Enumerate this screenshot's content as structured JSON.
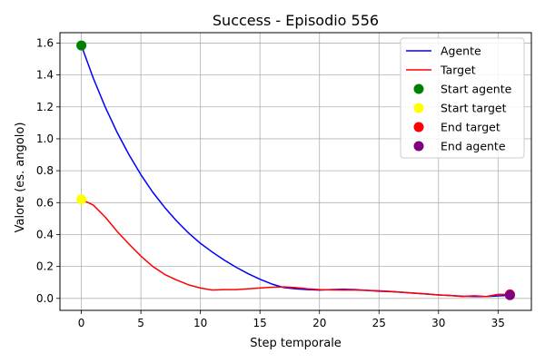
{
  "chart_data": {
    "type": "line",
    "title": "Success - Episodio 556",
    "xlabel": "Step temporale",
    "ylabel": "Valore (es. angolo)",
    "xlim": [
      -1.8,
      37.8
    ],
    "ylim": [
      -0.075,
      1.665
    ],
    "xticks": [
      0,
      5,
      10,
      15,
      20,
      25,
      30,
      35
    ],
    "yticks": [
      0.0,
      0.2,
      0.4,
      0.6,
      0.8,
      1.0,
      1.2,
      1.4,
      1.6
    ],
    "grid": true,
    "legend_position": "top-right",
    "series": [
      {
        "name": "Agente",
        "color": "#0000ff",
        "x": [
          0,
          1,
          2,
          3,
          4,
          5,
          6,
          7,
          8,
          9,
          10,
          11,
          12,
          13,
          14,
          15,
          16,
          17,
          18,
          19,
          20,
          21,
          22,
          23,
          24,
          25,
          26,
          27,
          28,
          29,
          30,
          31,
          32,
          33,
          34,
          35,
          36
        ],
        "y": [
          1.585,
          1.38,
          1.2,
          1.04,
          0.9,
          0.775,
          0.665,
          0.57,
          0.485,
          0.41,
          0.345,
          0.29,
          0.24,
          0.195,
          0.155,
          0.12,
          0.09,
          0.068,
          0.06,
          0.055,
          0.052,
          0.055,
          0.057,
          0.055,
          0.05,
          0.045,
          0.042,
          0.038,
          0.032,
          0.027,
          0.022,
          0.018,
          0.014,
          0.012,
          0.012,
          0.015,
          0.02
        ]
      },
      {
        "name": "Target",
        "color": "#ff0000",
        "x": [
          0,
          1,
          2,
          3,
          4,
          5,
          6,
          7,
          8,
          9,
          10,
          11,
          12,
          13,
          14,
          15,
          16,
          17,
          18,
          19,
          20,
          21,
          22,
          23,
          24,
          25,
          26,
          27,
          28,
          29,
          30,
          31,
          32,
          33,
          34,
          35,
          36
        ],
        "y": [
          0.62,
          0.585,
          0.51,
          0.42,
          0.34,
          0.265,
          0.2,
          0.15,
          0.115,
          0.085,
          0.065,
          0.052,
          0.055,
          0.055,
          0.06,
          0.065,
          0.07,
          0.072,
          0.068,
          0.06,
          0.055,
          0.053,
          0.052,
          0.052,
          0.05,
          0.048,
          0.044,
          0.038,
          0.033,
          0.028,
          0.022,
          0.018,
          0.012,
          0.017,
          0.012,
          0.025,
          0.025
        ]
      }
    ],
    "markers": [
      {
        "name": "Start agente",
        "color": "#008000",
        "x": 0,
        "y": 1.585
      },
      {
        "name": "Start target",
        "color": "#ffff00",
        "x": 0,
        "y": 0.62
      },
      {
        "name": "End target",
        "color": "#ff0000",
        "x": 36,
        "y": 0.025
      },
      {
        "name": "End agente",
        "color": "#800080",
        "x": 36,
        "y": 0.02
      }
    ]
  }
}
